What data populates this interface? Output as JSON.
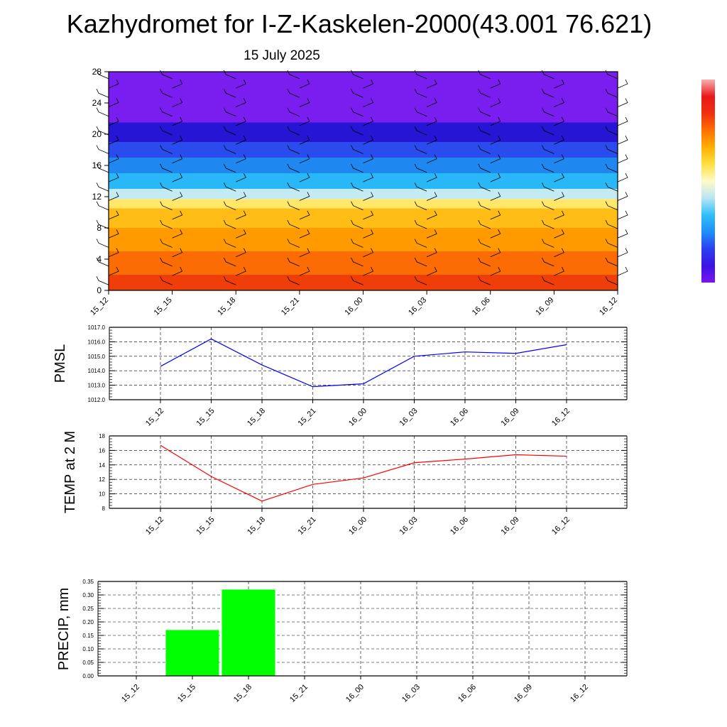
{
  "header": {
    "title": "Kazhydromet for I-Z-Kaskelen-2000(43.001 76.621)",
    "date": "15 July 2025"
  },
  "chart_data": [
    {
      "type": "heatmap",
      "name": "cross-section",
      "y_ticks": [
        "0",
        "4",
        "8",
        "12",
        "16",
        "20",
        "24",
        "28"
      ],
      "ylim": [
        0,
        28
      ],
      "x_ticks": [
        "15_12",
        "15_15",
        "15_18",
        "15_21",
        "16_00",
        "16_03",
        "16_06",
        "16_09",
        "16_12"
      ],
      "colorbar": {
        "colors": [
          "#7a16ee",
          "#3a14e6",
          "#2a40f0",
          "#1e90f8",
          "#30c0f8",
          "#b8e6f4",
          "#fffac8",
          "#ffe040",
          "#ffb000",
          "#ff7000",
          "#f03010",
          "#e81818",
          "#f8b0b0"
        ]
      },
      "bands": [
        {
          "from": 0,
          "to": 2,
          "color": "#f03e0a"
        },
        {
          "from": 2,
          "to": 5,
          "color": "#fb6c05"
        },
        {
          "from": 5,
          "to": 8,
          "color": "#ff9a00"
        },
        {
          "from": 8,
          "to": 10.5,
          "color": "#ffbd16"
        },
        {
          "from": 10.5,
          "to": 11.7,
          "color": "#ffe868"
        },
        {
          "from": 11.7,
          "to": 13,
          "color": "#c4eaf2"
        },
        {
          "from": 13,
          "to": 15,
          "color": "#28b8f8"
        },
        {
          "from": 15,
          "to": 17,
          "color": "#1e88f0"
        },
        {
          "from": 17,
          "to": 19,
          "color": "#2a4cec"
        },
        {
          "from": 19,
          "to": 21.5,
          "color": "#2616d4"
        },
        {
          "from": 21.5,
          "to": 28,
          "color": "#7a1ef0"
        }
      ]
    },
    {
      "type": "line",
      "name": "pmsl",
      "ylabel": "PMSL",
      "categories": [
        "15_12",
        "15_15",
        "15_18",
        "15_21",
        "16_00",
        "16_03",
        "16_06",
        "16_09",
        "16_12"
      ],
      "values": [
        1014.3,
        1016.2,
        1014.4,
        1012.9,
        1013.1,
        1015.0,
        1015.3,
        1015.2,
        1015.8
      ],
      "ylim": [
        1012.0,
        1017.0
      ],
      "y_ticks": [
        "1012.0",
        "1013.0",
        "1014.0",
        "1015.0",
        "1016.0",
        "1017.0"
      ],
      "color": "#0000ff",
      "grid": true
    },
    {
      "type": "line",
      "name": "temp",
      "ylabel": "TEMP at 2 M",
      "categories": [
        "15_12",
        "15_15",
        "15_18",
        "15_21",
        "16_00",
        "16_03",
        "16_06",
        "16_09",
        "16_12"
      ],
      "values": [
        16.7,
        12.4,
        9.0,
        11.3,
        12.2,
        14.3,
        14.8,
        15.4,
        15.2
      ],
      "ylim": [
        8,
        18
      ],
      "y_ticks": [
        "8",
        "10",
        "12",
        "14",
        "16",
        "18"
      ],
      "color": "#ff0000",
      "grid": true
    },
    {
      "type": "bar",
      "name": "precip",
      "ylabel": "PRECIP, mm",
      "categories": [
        "15_12",
        "15_15",
        "15_18",
        "15_21",
        "16_00",
        "16_03",
        "16_06",
        "16_09",
        "16_12"
      ],
      "values": [
        0,
        0.17,
        0.32,
        0,
        0,
        0,
        0,
        0,
        0
      ],
      "ylim": [
        0,
        0.35
      ],
      "y_ticks": [
        "0.00",
        "0.05",
        "0.10",
        "0.15",
        "0.20",
        "0.25",
        "0.30",
        "0.35"
      ],
      "color": "#00ff00",
      "grid": true
    }
  ]
}
